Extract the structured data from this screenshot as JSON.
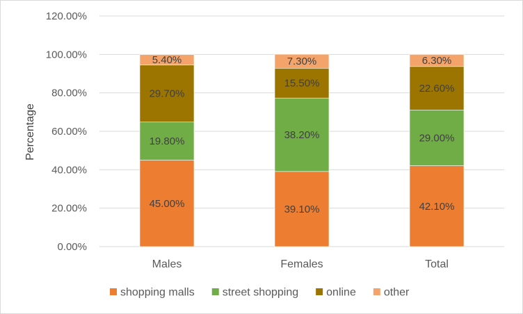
{
  "chart_data": {
    "type": "bar",
    "stacked": true,
    "categories": [
      "Males",
      "Females",
      "Total"
    ],
    "series": [
      {
        "name": "shopping malls",
        "values": [
          45.0,
          39.1,
          42.1
        ],
        "labels": [
          "45.00%",
          "39.10%",
          "42.10%"
        ],
        "color": "#ED7D31"
      },
      {
        "name": "street shopping",
        "values": [
          19.8,
          38.2,
          29.0
        ],
        "labels": [
          "19.80%",
          "38.20%",
          "29.00%"
        ],
        "color": "#70AD47"
      },
      {
        "name": "online",
        "values": [
          29.7,
          15.5,
          22.6
        ],
        "labels": [
          "29.70%",
          "15.50%",
          "22.60%"
        ],
        "color": "#9C7400"
      },
      {
        "name": "other",
        "values": [
          5.4,
          7.3,
          6.3
        ],
        "labels": [
          "5.40%",
          "7.30%",
          "6.30%"
        ],
        "color": "#F4A46A"
      }
    ],
    "ylabel": "Percentage",
    "xlabel": "",
    "ylim": [
      0,
      120
    ],
    "yticks": [
      0,
      20,
      40,
      60,
      80,
      100,
      120
    ],
    "ytick_labels": [
      "0.00%",
      "20.00%",
      "40.00%",
      "60.00%",
      "80.00%",
      "100.00%",
      "120.00%"
    ],
    "grid": true,
    "legend_position": "bottom"
  }
}
